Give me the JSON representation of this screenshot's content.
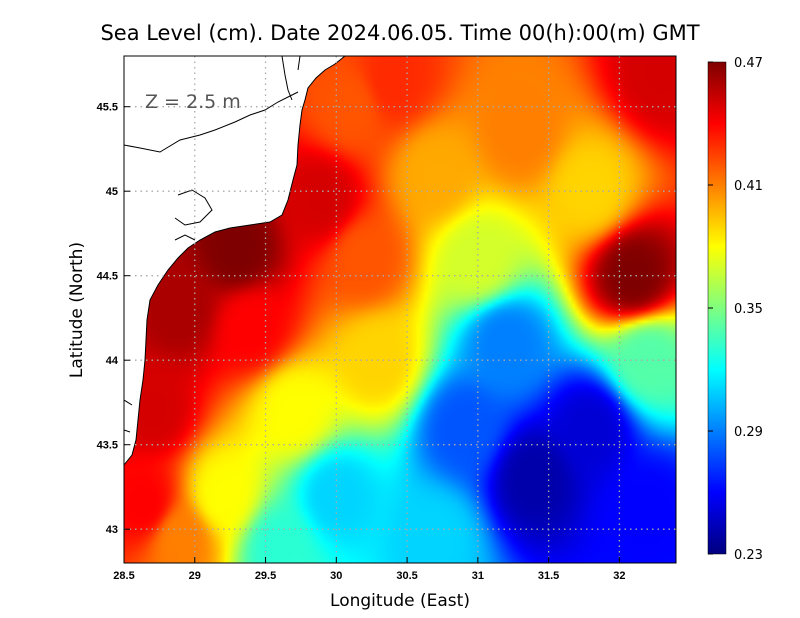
{
  "chart_data": {
    "type": "heatmap",
    "title": "Sea Level (cm). Date 2024.06.05. Time 00(h):00(m) GMT",
    "xlabel": "Longitude (East)",
    "ylabel": "Latitude (North)",
    "annotation": "Z = 2.5 m",
    "xlim": [
      28.5,
      32.4
    ],
    "ylim": [
      42.8,
      45.8
    ],
    "x_ticks": [
      28.5,
      29,
      29.5,
      30,
      30.5,
      31,
      31.5,
      32
    ],
    "x_tick_labels": [
      "28.5",
      "29",
      "29.5",
      "30",
      "30.5",
      "31",
      "31.5",
      "32"
    ],
    "y_ticks": [
      43,
      43.5,
      44,
      44.5,
      45,
      45.5
    ],
    "y_tick_labels": [
      "43",
      "43.5",
      "44",
      "44.5",
      "45",
      "45.5"
    ],
    "grid": true,
    "colorbar": {
      "min": 0.23,
      "max": 0.47,
      "ticks": [
        0.47,
        0.41,
        0.35,
        0.29,
        0.23
      ],
      "tick_labels": [
        "0.47",
        "0.41",
        "0.35",
        "0.29",
        "0.23"
      ],
      "colors": [
        "#00007f",
        "#0000ff",
        "#007fff",
        "#00ffff",
        "#7fff7f",
        "#ffff00",
        "#ff7f00",
        "#ff0000",
        "#7f0000"
      ]
    },
    "field_samples": [
      {
        "lon": 28.65,
        "lat": 43.15,
        "value": 0.44
      },
      {
        "lon": 28.7,
        "lat": 43.7,
        "value": 0.45
      },
      {
        "lon": 28.9,
        "lat": 44.3,
        "value": 0.46
      },
      {
        "lon": 29.3,
        "lat": 44.65,
        "value": 0.47
      },
      {
        "lon": 29.9,
        "lat": 44.95,
        "value": 0.45
      },
      {
        "lon": 30.1,
        "lat": 45.5,
        "value": 0.42
      },
      {
        "lon": 30.4,
        "lat": 45.65,
        "value": 0.43
      },
      {
        "lon": 31.3,
        "lat": 45.35,
        "value": 0.41
      },
      {
        "lon": 32.3,
        "lat": 45.7,
        "value": 0.45
      },
      {
        "lon": 31.8,
        "lat": 45.0,
        "value": 0.39
      },
      {
        "lon": 32.1,
        "lat": 44.5,
        "value": 0.47
      },
      {
        "lon": 31.0,
        "lat": 44.6,
        "value": 0.37
      },
      {
        "lon": 30.3,
        "lat": 44.0,
        "value": 0.39
      },
      {
        "lon": 29.7,
        "lat": 43.7,
        "value": 0.38
      },
      {
        "lon": 29.2,
        "lat": 43.2,
        "value": 0.38
      },
      {
        "lon": 30.0,
        "lat": 43.2,
        "value": 0.31
      },
      {
        "lon": 30.7,
        "lat": 42.95,
        "value": 0.31
      },
      {
        "lon": 30.9,
        "lat": 43.6,
        "value": 0.28
      },
      {
        "lon": 31.4,
        "lat": 43.3,
        "value": 0.24
      },
      {
        "lon": 31.8,
        "lat": 43.6,
        "value": 0.25
      },
      {
        "lon": 32.2,
        "lat": 43.1,
        "value": 0.26
      },
      {
        "lon": 31.2,
        "lat": 44.1,
        "value": 0.29
      },
      {
        "lon": 32.2,
        "lat": 44.0,
        "value": 0.34
      },
      {
        "lon": 30.2,
        "lat": 44.6,
        "value": 0.42
      },
      {
        "lon": 30.7,
        "lat": 45.1,
        "value": 0.4
      },
      {
        "lon": 29.4,
        "lat": 44.2,
        "value": 0.44
      },
      {
        "lon": 28.9,
        "lat": 42.95,
        "value": 0.41
      },
      {
        "lon": 29.6,
        "lat": 42.9,
        "value": 0.33
      }
    ]
  }
}
